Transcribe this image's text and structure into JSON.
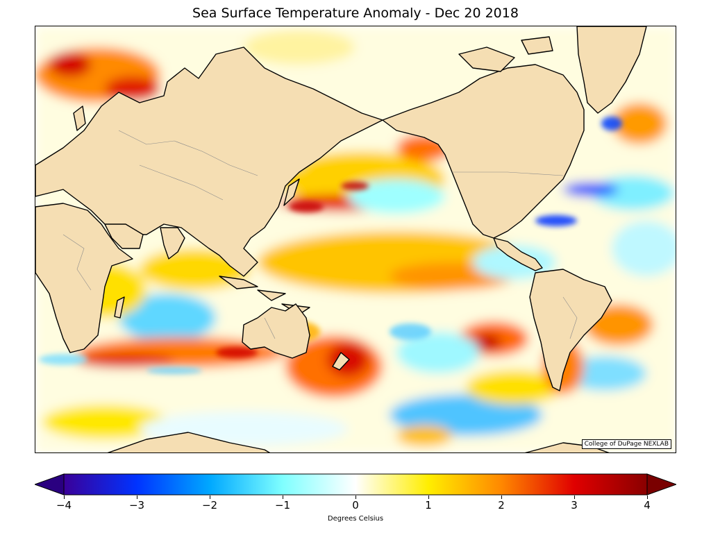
{
  "title": "Sea Surface Temperature Anomaly - Dec 20 2018",
  "credit": "College of DuPage NEXLAB",
  "colorbar": {
    "label": "Degrees Celsius",
    "min": -4,
    "max": 4,
    "ticks": [
      "−4",
      "−3",
      "−2",
      "−1",
      "0",
      "1",
      "2",
      "3",
      "4"
    ],
    "tick_values": [
      -4,
      -3,
      -2,
      -1,
      0,
      1,
      2,
      3,
      4
    ],
    "colors": {
      "n4": "#3a0099",
      "n3": "#0033ff",
      "n2": "#00a8ff",
      "n1": "#7fffff",
      "zero": "#ffffff",
      "p1": "#ffee00",
      "p2": "#ff8800",
      "p3": "#e00000",
      "p4": "#8a0000"
    }
  },
  "map": {
    "land_color": "#f5deb3",
    "ocean_base_color": "#ffffff",
    "projection": "mercator"
  }
}
